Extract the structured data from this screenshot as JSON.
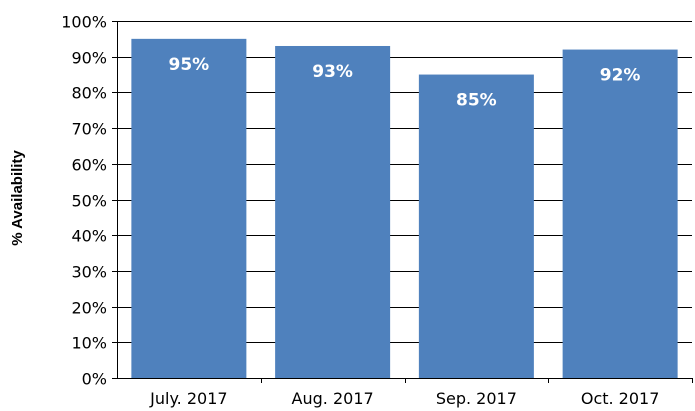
{
  "chart_data": {
    "type": "bar",
    "categories": [
      "July. 2017",
      "Aug. 2017",
      "Sep. 2017",
      "Oct. 2017"
    ],
    "values": [
      95,
      93,
      85,
      92
    ],
    "data_labels": [
      "95%",
      "93%",
      "85%",
      "92%"
    ],
    "title": "",
    "xlabel": "",
    "ylabel": "% Availability",
    "ylim": [
      0,
      100
    ],
    "y_ticks": [
      0,
      10,
      20,
      30,
      40,
      50,
      60,
      70,
      80,
      90,
      100
    ],
    "y_tick_labels": [
      "0%",
      "10%",
      "20%",
      "30%",
      "40%",
      "50%",
      "60%",
      "70%",
      "80%",
      "90%",
      "100%"
    ],
    "grid": true,
    "legend": "none",
    "bar_color": "#4f81bd",
    "grid_color": "#000000",
    "label_color": "#ffffff"
  }
}
